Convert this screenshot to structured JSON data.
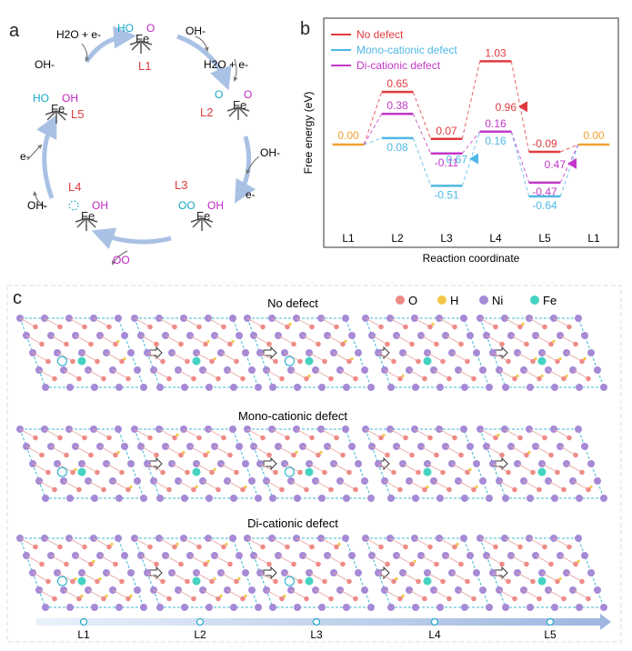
{
  "colors": {
    "no_defect": "#e03a3e",
    "mono": "#4fb7e6",
    "di": "#c237c8",
    "ref": "#f0a030",
    "arrow": "#a9c1e4",
    "frame": "#cfe3ee",
    "o_atom": "#ee8b86",
    "h_atom": "#f3c74a",
    "ni_atom": "#a68ad6",
    "fe_atom": "#45d3c2",
    "hl_cyan": "#13a8c9",
    "hl_magenta": "#c025c2"
  },
  "panel_a": {
    "label": "a",
    "states": [
      {
        "id": "L1",
        "name": "L1",
        "top_left": "HO",
        "top_right": "O",
        "center": "Fe"
      },
      {
        "id": "L2",
        "name": "L2",
        "top_left": "O",
        "top_right": "O",
        "center": "Fe"
      },
      {
        "id": "L3",
        "name": "L3",
        "top_left": "OO",
        "top_right": "OH",
        "center": "Fe"
      },
      {
        "id": "L4",
        "name": "L4",
        "top_left": "",
        "top_right": "OH",
        "center": "Fe"
      },
      {
        "id": "L5",
        "name": "L5",
        "top_left": "HO",
        "top_right": "OH",
        "center": "Fe"
      }
    ],
    "species": {
      "water_e": "H2O + e-",
      "oh": "OH-",
      "water_e_right": "H2O + e-",
      "oh_right": "OH-",
      "e_right": "e-",
      "oo_out": "OO",
      "oh_left": "OH-",
      "e_left": "e-",
      "oh_top": "OH-"
    }
  },
  "chart_data": {
    "panel_label": "b",
    "type": "line",
    "ylabel": "Free energy (eV)",
    "xlabel": "Reaction coordinate",
    "categories": [
      "L1",
      "L2",
      "L3",
      "L4",
      "L5",
      "L1"
    ],
    "legend_placement": "top-left",
    "ylim": [
      -1.0,
      1.45
    ],
    "series": [
      {
        "name": "No defect",
        "key": "no_defect",
        "values": [
          0.0,
          0.65,
          0.07,
          1.03,
          -0.09,
          0.0
        ]
      },
      {
        "name": "Mono-cationic defect",
        "key": "mono",
        "values": [
          0.0,
          0.08,
          -0.51,
          0.16,
          -0.64,
          0.0
        ]
      },
      {
        "name": "Di-cationic defect",
        "key": "di",
        "values": [
          0.0,
          0.38,
          -0.11,
          0.16,
          -0.47,
          0.0
        ]
      }
    ],
    "value_labels": {
      "ref_start": "0.00",
      "ref_end": "0.00",
      "no_defect": [
        "0.65",
        "0.07",
        "1.03",
        "-0.09"
      ],
      "mono": [
        "0.08",
        "-0.51",
        "0.16",
        "-0.64"
      ],
      "di": [
        "0.38",
        "-0.11",
        "0.16",
        "-0.47"
      ]
    },
    "annotations": [
      {
        "text": "0.96",
        "series": "no_defect",
        "between": [
          3,
          4
        ]
      },
      {
        "text": "0.67",
        "series": "mono",
        "between": [
          2,
          3
        ]
      },
      {
        "text": "0.47",
        "series": "di",
        "between": [
          4,
          5
        ]
      }
    ]
  },
  "panel_c": {
    "label": "c",
    "legend": [
      {
        "label": "O",
        "key": "o_atom"
      },
      {
        "label": "H",
        "key": "h_atom"
      },
      {
        "label": "Ni",
        "key": "ni_atom"
      },
      {
        "label": "Fe",
        "key": "fe_atom"
      }
    ],
    "rows": [
      {
        "title": "No defect"
      },
      {
        "title": "Mono-cationic defect"
      },
      {
        "title": "Di-cationic defect"
      }
    ],
    "timeline": [
      "L1",
      "L2",
      "L3",
      "L4",
      "L5"
    ]
  }
}
